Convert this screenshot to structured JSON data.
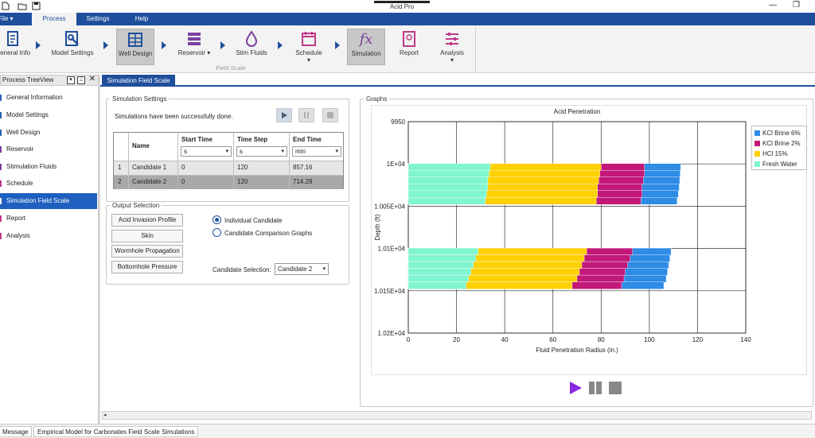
{
  "window": {
    "title": "Acid Pro",
    "minimize_glyph": "—",
    "restore_glyph": "❐"
  },
  "quick_access": [
    "new-file-icon",
    "open-folder-icon",
    "save-icon"
  ],
  "menu": {
    "file": "File",
    "process": "Process",
    "settings": "Settings",
    "help": "Help"
  },
  "ribbon": {
    "general_info": "General Info",
    "model_settings": "Model Settings",
    "well_design": "Well Design",
    "reservoir": "Reservoir",
    "stim_fluids": "Stim Fluids",
    "schedule": "Schedule",
    "simulation": "Simulation",
    "report": "Report",
    "analysis": "Analysis",
    "group_label": "Field Scale",
    "accent": "#1f4e9c",
    "icon_purple": "#7b3fa0",
    "icon_pink": "#c0398a"
  },
  "treeview": {
    "title": "Process TreeView",
    "items": [
      {
        "label": "General Information"
      },
      {
        "label": "Model Settings"
      },
      {
        "label": "Well Design"
      },
      {
        "label": "Reservoir"
      },
      {
        "label": "Stimulation Fluids"
      },
      {
        "label": "Schedule"
      },
      {
        "label": "Simulation Field Scale"
      },
      {
        "label": "Report"
      },
      {
        "label": "Analysis"
      }
    ],
    "selected": "Simulation Field Scale"
  },
  "document": {
    "tab": "Simulation Field Scale"
  },
  "simulation_settings": {
    "legend": "Simulation Settings",
    "status": "Simulations have been successfully done.",
    "columns": [
      "Name",
      "Start Time",
      "Time Step",
      "End Time"
    ],
    "units": [
      "s",
      "s",
      "min"
    ],
    "rows": [
      {
        "index": "1",
        "name": "Candidate 1",
        "start": "0",
        "step": "120",
        "end": "857.16"
      },
      {
        "index": "2",
        "name": "Candidate 2",
        "start": "0",
        "step": "120",
        "end": "714.29"
      }
    ]
  },
  "output_selection": {
    "legend": "Output Selection",
    "buttons": [
      "Acid Invasion Profile",
      "Skin",
      "Wormhole Propagation",
      "Bottomhole Pressure"
    ],
    "radio_individual": "Individual Candidate",
    "radio_comparison": "Candidate Comparison Graphs",
    "candidate_label": "Candidate Selection:",
    "candidate_value": "Candidate 2"
  },
  "graphs": {
    "legend": "Graphs"
  },
  "chart_data": {
    "type": "bar",
    "orientation": "horizontal-stacked",
    "title": "Acid Penetration",
    "xlabel": "Fluid Penetration Radius (in.)",
    "ylabel": "Depth (ft)",
    "xlim": [
      0,
      140
    ],
    "x_ticks": [
      "0",
      "20",
      "40",
      "60",
      "80",
      "100",
      "120",
      "140"
    ],
    "ylim": [
      9950,
      10200
    ],
    "y_ticks": [
      "9950",
      "1E+04",
      "1.005E+04",
      "1.01E+04",
      "1.015E+04",
      "1.02E+04"
    ],
    "grid": true,
    "legend_position": "right",
    "series": [
      {
        "name": "KCl Brine 6%",
        "color": "#2e8be6"
      },
      {
        "name": "KCl Brine 2%",
        "color": "#c2187a"
      },
      {
        "name": "HCl 15%",
        "color": "#ffd000"
      },
      {
        "name": "Fresh Water",
        "color": "#7ff5d0"
      }
    ],
    "stacks": [
      {
        "depth": 10000,
        "fresh": 34,
        "hcl": 80,
        "kcl2": 98,
        "kcl6": 113
      },
      {
        "depth": 10008,
        "fresh": 33.5,
        "hcl": 79.5,
        "kcl2": 98,
        "kcl6": 112.8
      },
      {
        "depth": 10016,
        "fresh": 33,
        "hcl": 79,
        "kcl2": 97.5,
        "kcl6": 112.6
      },
      {
        "depth": 10024,
        "fresh": 33,
        "hcl": 78.5,
        "kcl2": 97,
        "kcl6": 112.4
      },
      {
        "depth": 10032,
        "fresh": 32.5,
        "hcl": 78.5,
        "kcl2": 97,
        "kcl6": 112
      },
      {
        "depth": 10040,
        "fresh": 32,
        "hcl": 78,
        "kcl2": 96.5,
        "kcl6": 111.5
      },
      {
        "depth": 10100,
        "fresh": 29,
        "hcl": 74,
        "kcl2": 93,
        "kcl6": 109
      },
      {
        "depth": 10108,
        "fresh": 28,
        "hcl": 73,
        "kcl2": 92,
        "kcl6": 108.5
      },
      {
        "depth": 10116,
        "fresh": 27,
        "hcl": 72,
        "kcl2": 91,
        "kcl6": 108
      },
      {
        "depth": 10124,
        "fresh": 26,
        "hcl": 71,
        "kcl2": 90,
        "kcl6": 107.5
      },
      {
        "depth": 10132,
        "fresh": 25,
        "hcl": 70,
        "kcl2": 89.5,
        "kcl6": 107
      },
      {
        "depth": 10140,
        "fresh": 24,
        "hcl": 68,
        "kcl2": 88.5,
        "kcl6": 106
      }
    ]
  },
  "statusbar": {
    "tab1": "Message",
    "tab2": "Empirical Model for Carbonates Field Scale Simulations"
  }
}
